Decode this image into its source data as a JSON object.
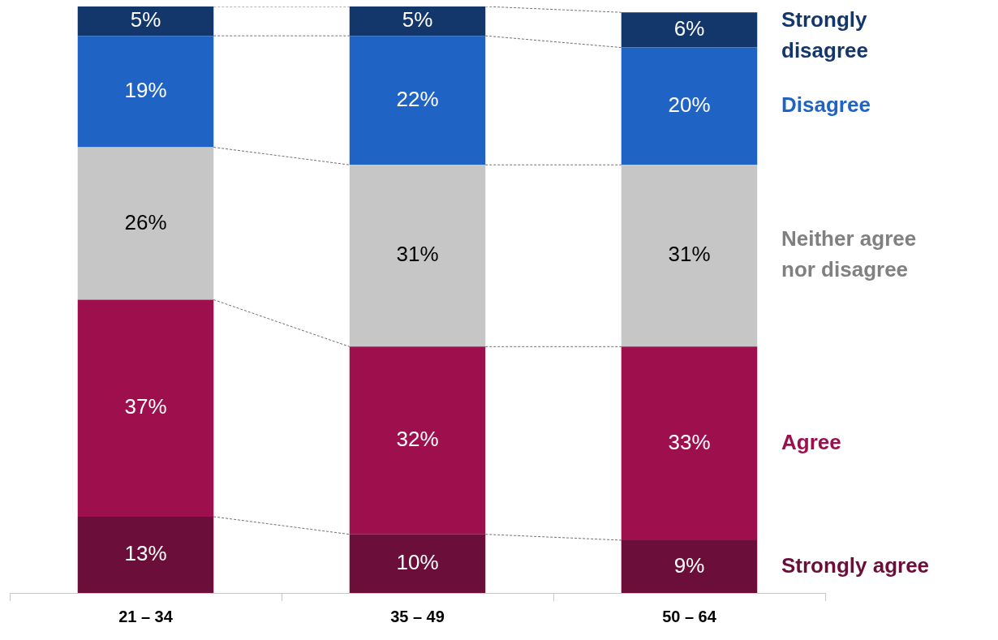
{
  "chart_data": {
    "type": "bar",
    "stacked": true,
    "categories": [
      "21 – 34",
      "35 – 49",
      "50 – 64"
    ],
    "series": [
      {
        "name": "Strongly agree",
        "color": "#6b0f3a",
        "values": [
          13,
          10,
          9
        ],
        "value_labels": [
          "13%",
          "10%",
          "9%"
        ]
      },
      {
        "name": "Agree",
        "color": "#9e0f4e",
        "values": [
          37,
          32,
          33
        ],
        "value_labels": [
          "37%",
          "32%",
          "33%"
        ]
      },
      {
        "name": "Neither agree nor disagree",
        "color": "#c6c6c6",
        "values": [
          26,
          31,
          31
        ],
        "value_labels": [
          "26%",
          "31%",
          "31%"
        ]
      },
      {
        "name": "Disagree",
        "color": "#1f64c4",
        "values": [
          19,
          22,
          20
        ],
        "value_labels": [
          "19%",
          "22%",
          "20%"
        ]
      },
      {
        "name": "Strongly disagree",
        "color": "#13366b",
        "values": [
          5,
          5,
          6
        ],
        "value_labels": [
          "5%",
          "5%",
          "6%"
        ]
      }
    ],
    "grid": false,
    "legend": false
  }
}
